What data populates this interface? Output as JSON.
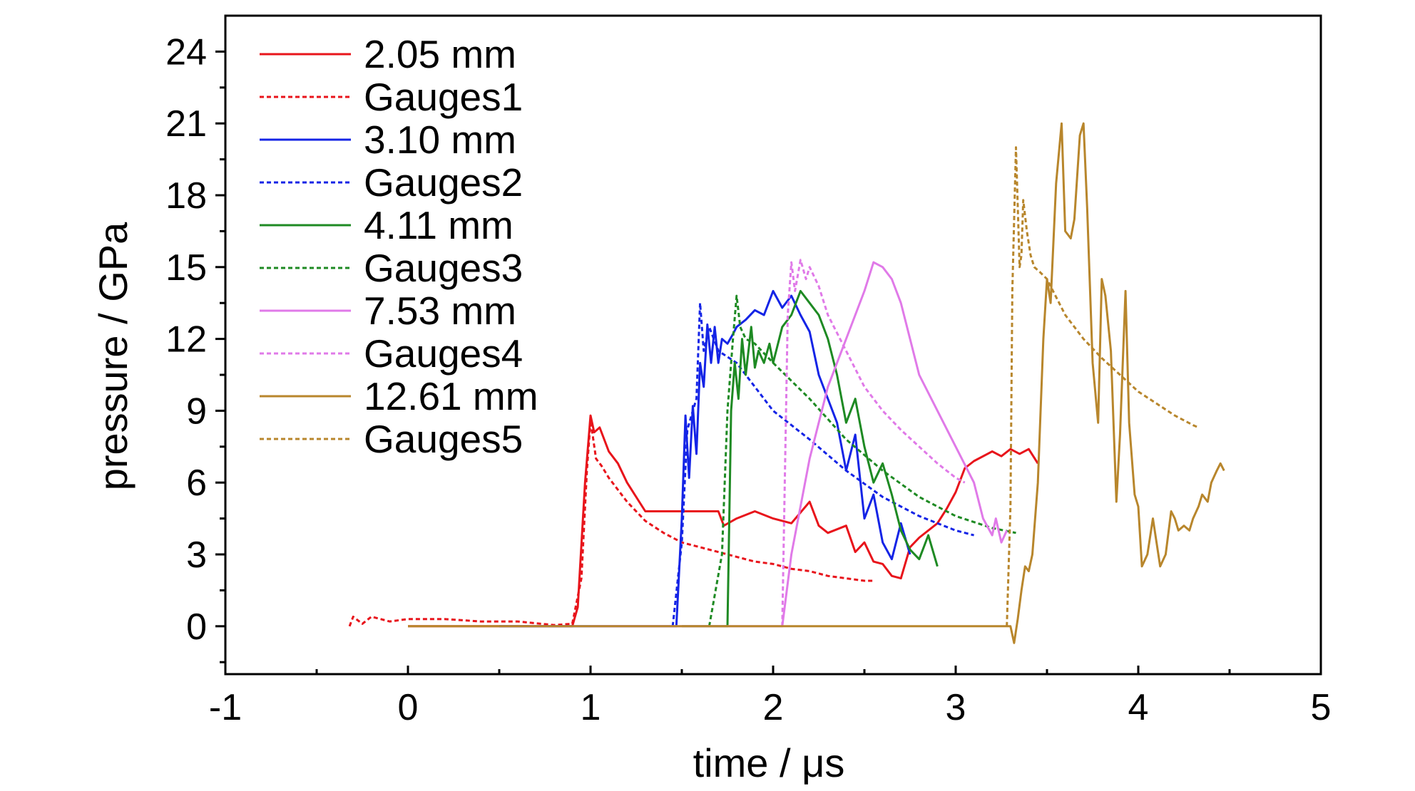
{
  "chart_data": {
    "type": "line",
    "title": "",
    "xlabel": "time / μs",
    "ylabel": "pressure / GPa",
    "xlim": [
      -1,
      5
    ],
    "ylim": [
      -2,
      25.5
    ],
    "x_ticks": [
      -1,
      0,
      1,
      2,
      3,
      4,
      5
    ],
    "y_ticks": [
      0,
      3,
      6,
      9,
      12,
      15,
      18,
      21,
      24
    ],
    "grid": false,
    "legend_position": "top-left",
    "series": [
      {
        "name": "2.05 mm",
        "color": "#e8141b",
        "style": "solid",
        "x": [
          0,
          0.9,
          0.93,
          0.97,
          1.0,
          1.02,
          1.05,
          1.1,
          1.15,
          1.2,
          1.3,
          1.5,
          1.7,
          1.73,
          1.8,
          1.9,
          2.0,
          2.1,
          2.2,
          2.25,
          2.3,
          2.4,
          2.45,
          2.5,
          2.55,
          2.6,
          2.65,
          2.7,
          2.75,
          2.8,
          2.9,
          2.95,
          3.0,
          3.05,
          3.1,
          3.2,
          3.25,
          3.3,
          3.35,
          3.4,
          3.45
        ],
        "y": [
          0,
          0,
          0.8,
          6.0,
          8.8,
          8.1,
          8.3,
          7.3,
          6.8,
          6.0,
          4.8,
          4.8,
          4.8,
          4.2,
          4.5,
          4.8,
          4.5,
          4.3,
          5.2,
          4.2,
          3.9,
          4.2,
          3.1,
          3.5,
          2.7,
          2.6,
          2.1,
          2.0,
          3.3,
          3.7,
          4.3,
          4.9,
          5.6,
          6.6,
          6.9,
          7.3,
          7.1,
          7.4,
          7.2,
          7.4,
          6.8
        ]
      },
      {
        "name": "Gauges1",
        "color": "#e8141b",
        "style": "dotted",
        "x": [
          -0.32,
          -0.3,
          -0.25,
          -0.2,
          -0.1,
          0,
          0.2,
          0.4,
          0.6,
          0.8,
          0.9,
          0.95,
          0.98,
          1.0,
          1.03,
          1.06,
          1.1,
          1.2,
          1.3,
          1.4,
          1.5,
          1.6,
          1.7,
          1.8,
          1.9,
          2.0,
          2.1,
          2.2,
          2.3,
          2.4,
          2.5,
          2.55
        ],
        "y": [
          0,
          0.4,
          0.1,
          0.4,
          0.2,
          0.3,
          0.3,
          0.2,
          0.2,
          0.05,
          0.1,
          2.0,
          6.5,
          8.6,
          7.0,
          6.7,
          6.2,
          5.2,
          4.4,
          3.9,
          3.5,
          3.3,
          3.1,
          2.9,
          2.7,
          2.6,
          2.4,
          2.3,
          2.1,
          2.0,
          1.9,
          1.9
        ]
      },
      {
        "name": "3.10 mm",
        "color": "#1424e6",
        "style": "solid",
        "x": [
          0.5,
          1.47,
          1.5,
          1.52,
          1.54,
          1.56,
          1.58,
          1.6,
          1.62,
          1.64,
          1.66,
          1.68,
          1.7,
          1.72,
          1.75,
          1.78,
          1.8,
          1.85,
          1.9,
          1.95,
          2.0,
          2.05,
          2.1,
          2.15,
          2.2,
          2.25,
          2.3,
          2.35,
          2.4,
          2.45,
          2.5,
          2.55,
          2.6,
          2.65,
          2.7,
          2.75
        ],
        "y": [
          0,
          0,
          4.5,
          8.8,
          6.2,
          9.2,
          7.2,
          11.0,
          10.0,
          12.6,
          11.0,
          12.5,
          11.0,
          12.0,
          11.8,
          12.2,
          12.5,
          12.8,
          13.2,
          13.0,
          14.0,
          13.3,
          13.8,
          13.0,
          12.3,
          10.5,
          9.5,
          8.5,
          6.5,
          8.0,
          4.5,
          5.5,
          3.5,
          2.8,
          4.3,
          3.0
        ]
      },
      {
        "name": "Gauges2",
        "color": "#1424e6",
        "style": "dotted",
        "x": [
          1.45,
          1.5,
          1.53,
          1.56,
          1.58,
          1.6,
          1.62,
          1.65,
          1.7,
          1.8,
          1.9,
          2.0,
          2.2,
          2.4,
          2.6,
          2.8,
          3.0,
          3.1
        ],
        "y": [
          0,
          3.5,
          8.2,
          9.0,
          9.5,
          13.5,
          11.5,
          12.5,
          11.5,
          11.0,
          10.0,
          9.0,
          7.8,
          6.5,
          5.4,
          4.6,
          4.0,
          3.8
        ]
      },
      {
        "name": "4.11 mm",
        "color": "#1e8a23",
        "style": "solid",
        "x": [
          1.5,
          1.75,
          1.77,
          1.79,
          1.81,
          1.83,
          1.85,
          1.88,
          1.9,
          1.92,
          1.95,
          1.98,
          2.0,
          2.05,
          2.1,
          2.15,
          2.2,
          2.25,
          2.3,
          2.35,
          2.4,
          2.45,
          2.5,
          2.55,
          2.6,
          2.65,
          2.7,
          2.75,
          2.8,
          2.85,
          2.9
        ],
        "y": [
          0,
          0,
          9.0,
          11.0,
          9.5,
          12.0,
          10.5,
          12.5,
          10.8,
          11.5,
          11.0,
          11.8,
          11.0,
          12.5,
          13.0,
          14.0,
          13.5,
          13.0,
          12.0,
          10.5,
          8.5,
          9.5,
          7.5,
          6.0,
          6.8,
          5.5,
          4.0,
          3.2,
          2.8,
          3.8,
          2.5
        ]
      },
      {
        "name": "Gauges3",
        "color": "#1e8a23",
        "style": "dotted",
        "x": [
          1.65,
          1.72,
          1.75,
          1.78,
          1.8,
          1.82,
          1.85,
          1.9,
          2.0,
          2.2,
          2.4,
          2.6,
          2.8,
          3.0,
          3.2,
          3.33
        ],
        "y": [
          0,
          3.0,
          9.0,
          12.0,
          13.8,
          12.5,
          12.0,
          11.8,
          11.0,
          9.5,
          7.8,
          6.5,
          5.4,
          4.6,
          4.1,
          3.9
        ]
      },
      {
        "name": "7.53 mm",
        "color": "#e07ae8",
        "style": "solid",
        "x": [
          1.0,
          2.05,
          2.1,
          2.2,
          2.3,
          2.4,
          2.5,
          2.55,
          2.6,
          2.65,
          2.7,
          2.75,
          2.8,
          2.9,
          3.0,
          3.1,
          3.15,
          3.2,
          3.22,
          3.25,
          3.28
        ],
        "y": [
          0,
          0,
          3.0,
          7.0,
          10.0,
          12.0,
          14.0,
          15.2,
          15.0,
          14.5,
          13.5,
          12.0,
          10.5,
          9.0,
          7.5,
          6.0,
          4.5,
          3.8,
          4.5,
          3.5,
          4.0
        ]
      },
      {
        "name": "Gauges4",
        "color": "#e07ae8",
        "style": "dotted",
        "x": [
          2.05,
          2.08,
          2.1,
          2.12,
          2.15,
          2.18,
          2.2,
          2.25,
          2.3,
          2.4,
          2.5,
          2.6,
          2.7,
          2.8,
          2.9,
          3.0,
          3.05
        ],
        "y": [
          0,
          13.0,
          15.2,
          14.0,
          15.3,
          14.5,
          15.0,
          14.2,
          13.0,
          11.5,
          10.0,
          9.0,
          8.2,
          7.5,
          6.8,
          6.2,
          6.0
        ]
      },
      {
        "name": "12.61 mm",
        "color": "#b8862c",
        "style": "solid",
        "x": [
          0,
          3.3,
          3.32,
          3.34,
          3.36,
          3.38,
          3.4,
          3.42,
          3.45,
          3.48,
          3.5,
          3.52,
          3.55,
          3.58,
          3.6,
          3.63,
          3.65,
          3.68,
          3.7,
          3.72,
          3.75,
          3.78,
          3.8,
          3.82,
          3.85,
          3.88,
          3.9,
          3.93,
          3.95,
          3.98,
          4.0,
          4.02,
          4.05,
          4.08,
          4.1,
          4.12,
          4.15,
          4.18,
          4.2,
          4.22,
          4.25,
          4.28,
          4.3,
          4.33,
          4.35,
          4.38,
          4.4,
          4.43,
          4.45,
          4.47
        ],
        "y": [
          0,
          0,
          -0.7,
          0.3,
          1.5,
          2.5,
          2.3,
          3.0,
          6.0,
          12.0,
          14.5,
          13.5,
          18.5,
          21.0,
          16.5,
          16.2,
          17.0,
          20.5,
          21.0,
          17.5,
          11.0,
          8.5,
          14.5,
          13.8,
          11.5,
          5.2,
          8.0,
          14.0,
          8.5,
          5.5,
          5.0,
          2.5,
          3.0,
          4.5,
          3.5,
          2.5,
          3.0,
          4.8,
          4.5,
          4.0,
          4.2,
          4.0,
          4.5,
          5.0,
          5.5,
          5.2,
          6.0,
          6.5,
          6.8,
          6.5
        ]
      },
      {
        "name": "Gauges5",
        "color": "#b8862c",
        "style": "dotted",
        "x": [
          3.28,
          3.3,
          3.31,
          3.33,
          3.35,
          3.36,
          3.37,
          3.39,
          3.41,
          3.43,
          3.46,
          3.5,
          3.6,
          3.7,
          3.8,
          3.9,
          4.0,
          4.1,
          4.2,
          4.3,
          4.33
        ],
        "y": [
          0,
          5.0,
          14.0,
          20.0,
          15.0,
          15.5,
          17.8,
          16.5,
          15.5,
          15.0,
          14.8,
          14.5,
          13.0,
          12.0,
          11.2,
          10.5,
          9.8,
          9.3,
          8.8,
          8.4,
          8.3
        ]
      }
    ]
  }
}
